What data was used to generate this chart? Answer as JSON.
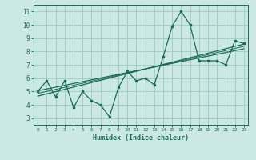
{
  "x": [
    0,
    1,
    2,
    3,
    4,
    5,
    6,
    7,
    8,
    9,
    10,
    11,
    12,
    13,
    14,
    15,
    16,
    17,
    18,
    19,
    20,
    21,
    22,
    23
  ],
  "y_main": [
    5.0,
    5.8,
    4.6,
    5.8,
    3.8,
    5.0,
    4.3,
    4.0,
    3.1,
    5.3,
    6.5,
    5.8,
    6.0,
    5.5,
    7.6,
    9.9,
    11.0,
    10.0,
    7.3,
    7.3,
    7.3,
    7.0,
    8.8,
    8.6
  ],
  "trend1_x": [
    0,
    23
  ],
  "trend1_y": [
    4.65,
    8.55
  ],
  "trend2_x": [
    0,
    23
  ],
  "trend2_y": [
    5.05,
    8.2
  ],
  "trend3_x": [
    0,
    23
  ],
  "trend3_y": [
    4.85,
    8.38
  ],
  "line_color": "#1a6b5a",
  "bg_color": "#cce8e4",
  "grid_color": "#99ccc4",
  "xlabel": "Humidex (Indice chaleur)",
  "ylim": [
    2.5,
    11.5
  ],
  "xlim": [
    -0.5,
    23.5
  ],
  "yticks": [
    3,
    4,
    5,
    6,
    7,
    8,
    9,
    10,
    11
  ],
  "xticks": [
    0,
    1,
    2,
    3,
    4,
    5,
    6,
    7,
    8,
    9,
    10,
    11,
    12,
    13,
    14,
    15,
    16,
    17,
    18,
    19,
    20,
    21,
    22,
    23
  ]
}
